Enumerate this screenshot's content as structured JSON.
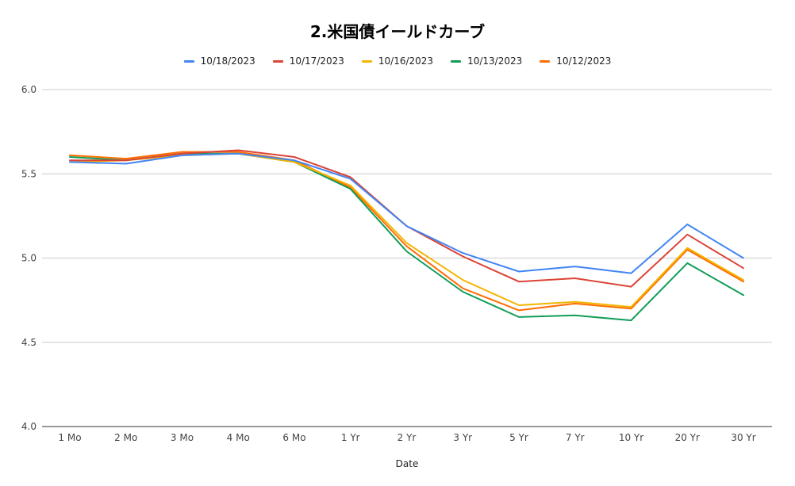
{
  "chart_data": {
    "type": "line",
    "title": "2.米国債イールドカーブ",
    "xlabel": "Date",
    "ylabel": "",
    "ylim": [
      4.0,
      6.0
    ],
    "yticks": [
      "4.0",
      "4.5",
      "5.0",
      "5.5",
      "6.0"
    ],
    "grid": true,
    "legend_position": "top",
    "categories": [
      "1 Mo",
      "2 Mo",
      "3 Mo",
      "4 Mo",
      "6 Mo",
      "1 Yr",
      "2 Yr",
      "3 Yr",
      "5 Yr",
      "7 Yr",
      "10 Yr",
      "20 Yr",
      "30 Yr"
    ],
    "series": [
      {
        "name": "10/18/2023",
        "color": "#4285f4",
        "values": [
          5.57,
          5.56,
          5.61,
          5.62,
          5.58,
          5.47,
          5.19,
          5.03,
          4.92,
          4.95,
          4.91,
          5.2,
          5.0
        ]
      },
      {
        "name": "10/17/2023",
        "color": "#db4437",
        "values": [
          5.58,
          5.58,
          5.62,
          5.64,
          5.6,
          5.48,
          5.19,
          5.01,
          4.86,
          4.88,
          4.83,
          5.14,
          4.94
        ]
      },
      {
        "name": "10/16/2023",
        "color": "#f4b400",
        "values": [
          5.57,
          5.58,
          5.61,
          5.62,
          5.57,
          5.43,
          5.09,
          4.87,
          4.72,
          4.74,
          4.71,
          5.06,
          4.87
        ]
      },
      {
        "name": "10/13/2023",
        "color": "#0f9d58",
        "values": [
          5.6,
          5.58,
          5.62,
          5.62,
          5.57,
          5.41,
          5.04,
          4.8,
          4.65,
          4.66,
          4.63,
          4.97,
          4.78
        ]
      },
      {
        "name": "10/12/2023",
        "color": "#ff6d01",
        "values": [
          5.61,
          5.59,
          5.63,
          5.63,
          5.58,
          5.42,
          5.07,
          4.82,
          4.69,
          4.73,
          4.7,
          5.05,
          4.86
        ]
      }
    ]
  }
}
